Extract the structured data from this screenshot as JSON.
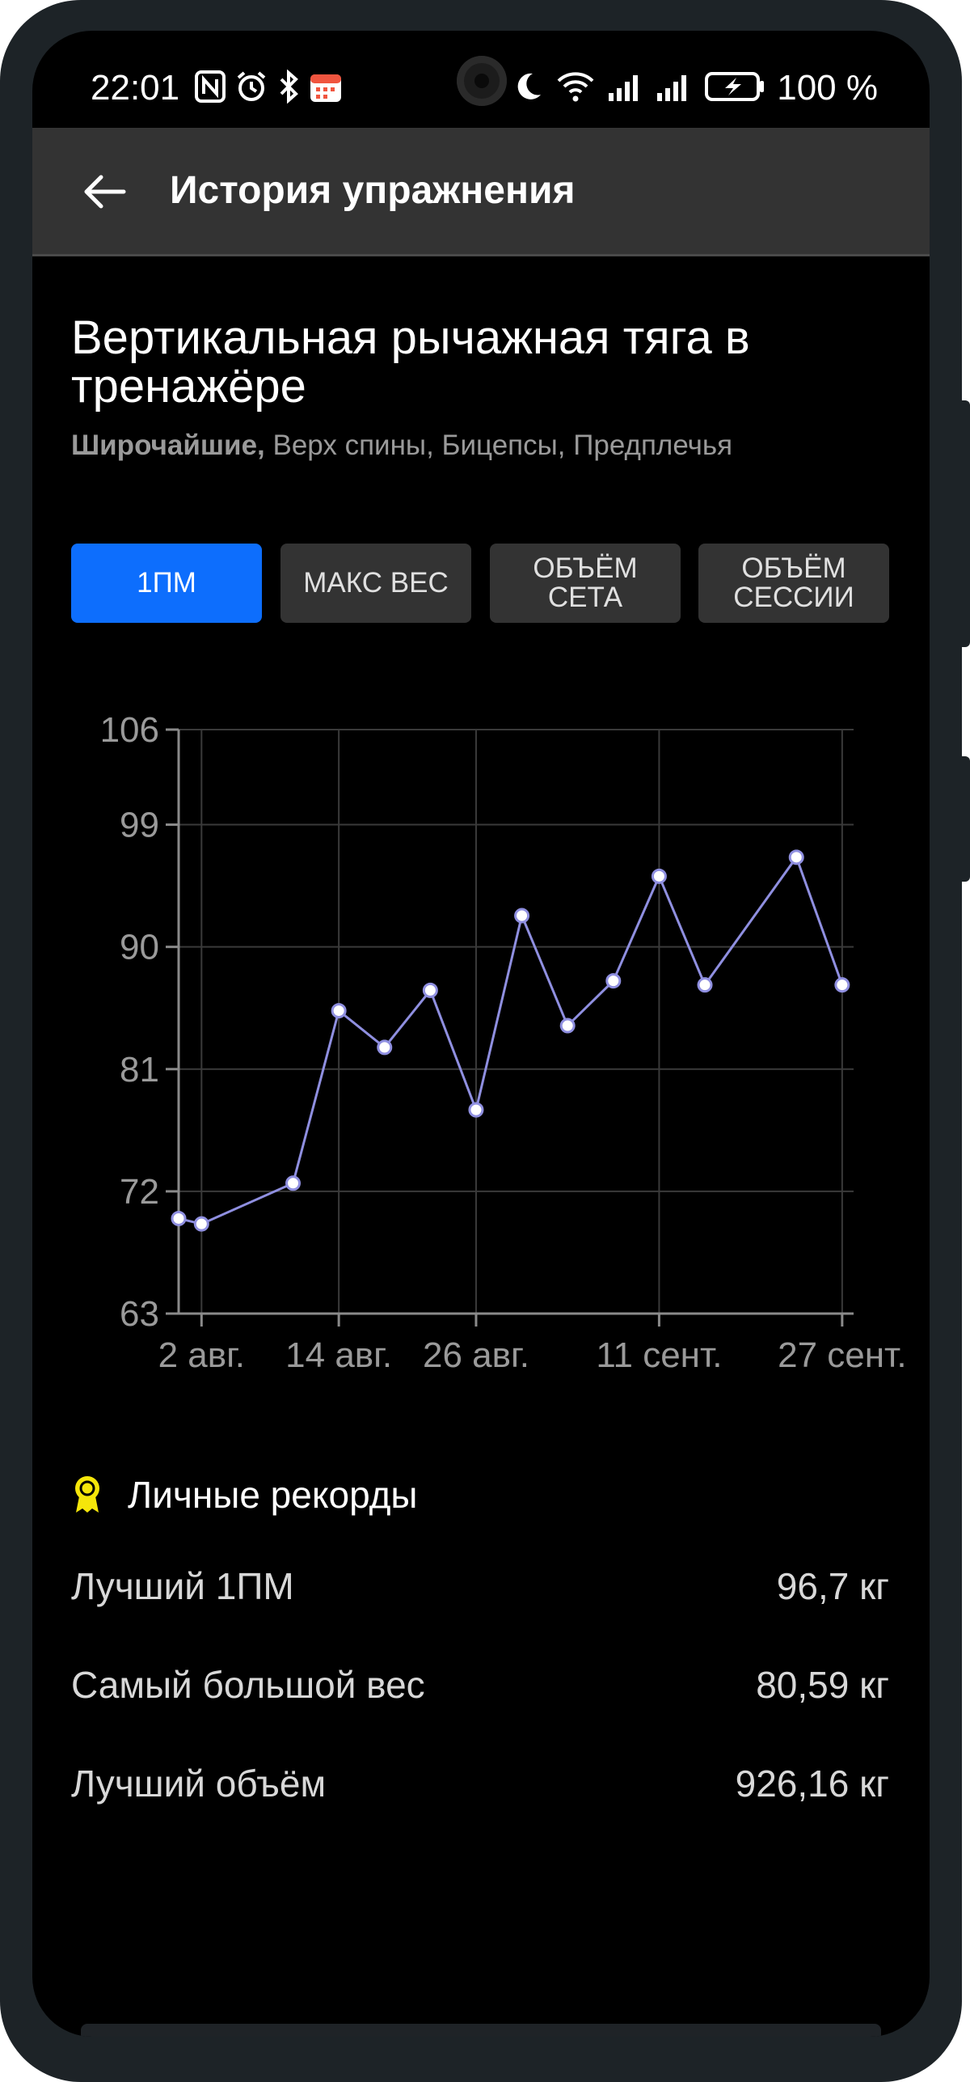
{
  "status_bar": {
    "time": "22:01",
    "battery_label": "100 %",
    "left_icons": [
      "nfc-icon",
      "alarm-icon",
      "bluetooth-icon",
      "calendar-icon"
    ],
    "right_icons": [
      "moon-icon",
      "wifi-icon",
      "signal-icon",
      "signal-icon",
      "battery-charging-icon"
    ]
  },
  "appbar": {
    "title": "История упражнения",
    "back_icon": "arrow-left-icon"
  },
  "exercise": {
    "title": "Вертикальная рычажная тяга в тренажёре",
    "primary_muscle": "Широчайшие,",
    "secondary_muscles": " Верх спины, Бицепсы, Предплечья"
  },
  "tabs": [
    {
      "label": "1ПМ",
      "active": true
    },
    {
      "label": "МАКС ВЕС",
      "active": false
    },
    {
      "label": "ОБЪЁМ\nСЕТА",
      "active": false
    },
    {
      "label": "ОБЪЁМ\nСЕССИИ",
      "active": false
    }
  ],
  "chart_data": {
    "type": "line",
    "title": "",
    "xlabel": "",
    "ylabel": "",
    "x_tick_labels": [
      "2 авг.",
      "14 авг.",
      "26 авг.",
      "11 сент.",
      "27 сент."
    ],
    "y_ticks": [
      63,
      72,
      81,
      90,
      99,
      106
    ],
    "ylim": [
      63,
      106
    ],
    "xlim": [
      "31 июл.",
      "28 сент."
    ],
    "grid": true,
    "line_color": "#8f8fe0",
    "series": [
      {
        "name": "",
        "points": [
          {
            "x": "31 июл.",
            "y": 70.0
          },
          {
            "x": "2 авг.",
            "y": 69.6
          },
          {
            "x": "10 авг.",
            "y": 72.6
          },
          {
            "x": "14 авг.",
            "y": 85.3
          },
          {
            "x": "18 авг.",
            "y": 82.6
          },
          {
            "x": "22 авг.",
            "y": 86.8
          },
          {
            "x": "26 авг.",
            "y": 78.0
          },
          {
            "x": "30 авг.",
            "y": 92.3
          },
          {
            "x": "3 сент.",
            "y": 84.2
          },
          {
            "x": "7 сент.",
            "y": 87.5
          },
          {
            "x": "11 сент.",
            "y": 95.2
          },
          {
            "x": "15 сент.",
            "y": 87.2
          },
          {
            "x": "23 сент.",
            "y": 96.6
          },
          {
            "x": "27 сент.",
            "y": 87.2
          }
        ]
      }
    ]
  },
  "records": {
    "title": "Личные рекорды",
    "icon": "medal-icon",
    "icon_color": "#f5e60a",
    "items": [
      {
        "label": "Лучший 1ПМ",
        "value": "96,7 кг"
      },
      {
        "label": "Самый большой вес",
        "value": "80,59 кг"
      },
      {
        "label": "Лучший объём",
        "value": "926,16 кг"
      }
    ]
  },
  "colors": {
    "accent": "#0d6efd",
    "background": "#000000",
    "appbar": "#333333",
    "tab_inactive": "#333333"
  }
}
